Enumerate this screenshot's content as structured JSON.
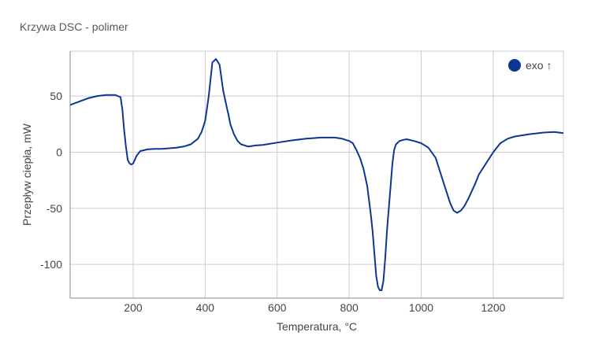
{
  "chart_data": {
    "type": "line",
    "title": "Krzywa DSC - polimer",
    "xlabel": "Temperatura, °C",
    "ylabel": "Przepływ ciepła, mW",
    "xlim": [
      25,
      1395
    ],
    "ylim": [
      -130,
      90
    ],
    "x_ticks": [
      200,
      400,
      600,
      800,
      1000,
      1200
    ],
    "y_ticks": [
      -100,
      -50,
      0,
      50
    ],
    "grid": true,
    "legend": {
      "position": "top-right"
    },
    "series": [
      {
        "name": "exo ↑",
        "color": "#0d3592",
        "x": [
          25,
          50,
          75,
          100,
          125,
          150,
          165,
          170,
          175,
          180,
          185,
          190,
          195,
          200,
          210,
          220,
          240,
          260,
          280,
          300,
          320,
          340,
          360,
          380,
          390,
          400,
          410,
          420,
          430,
          440,
          450,
          460,
          465,
          470,
          480,
          490,
          500,
          520,
          540,
          560,
          580,
          600,
          640,
          680,
          700,
          720,
          760,
          780,
          800,
          810,
          820,
          830,
          840,
          850,
          860,
          865,
          870,
          875,
          880,
          885,
          890,
          895,
          900,
          905,
          910,
          915,
          920,
          925,
          930,
          940,
          950,
          960,
          980,
          1000,
          1020,
          1040,
          1060,
          1070,
          1080,
          1090,
          1100,
          1110,
          1120,
          1130,
          1140,
          1150,
          1160,
          1180,
          1200,
          1220,
          1240,
          1260,
          1300,
          1340,
          1370,
          1395
        ],
        "y": [
          42,
          45,
          48,
          50,
          51,
          51,
          49,
          38,
          20,
          5,
          -7,
          -10,
          -11,
          -10,
          -3,
          1,
          2.5,
          3,
          3,
          3.5,
          4,
          5,
          7,
          12,
          18,
          28,
          50,
          80,
          83,
          78,
          55,
          40,
          33,
          25,
          16,
          10,
          7,
          5,
          6,
          6.5,
          7.5,
          8.5,
          10.5,
          12,
          12.5,
          13,
          13,
          12,
          10,
          8,
          2,
          -5,
          -15,
          -30,
          -55,
          -70,
          -90,
          -110,
          -120,
          -123,
          -123,
          -115,
          -95,
          -70,
          -50,
          -30,
          -10,
          2,
          7,
          10,
          11,
          11.5,
          10,
          8,
          4,
          -5,
          -25,
          -35,
          -45,
          -52,
          -54,
          -52,
          -48,
          -42,
          -35,
          -28,
          -20,
          -10,
          0,
          8,
          12,
          14,
          16,
          17.5,
          18,
          17
        ]
      }
    ]
  }
}
